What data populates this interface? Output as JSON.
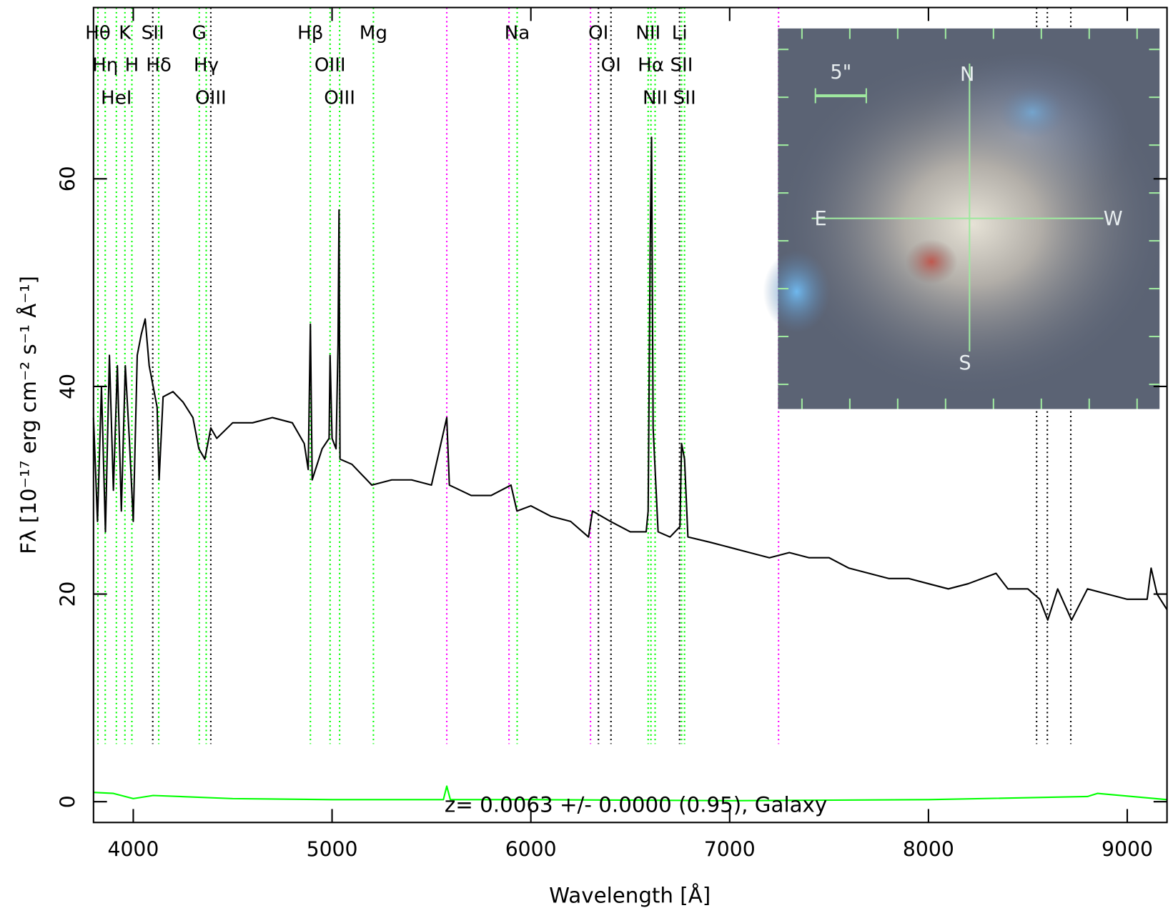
{
  "chart_data": {
    "type": "line",
    "xlabel": "Wavelength [Å]",
    "ylabel": "Fλ [10⁻¹⁷ erg cm⁻² s⁻¹ Å⁻¹]",
    "annotation": "z= 0.0063 +/- 0.0000 (0.95), Galaxy",
    "xlim": [
      3800,
      9200
    ],
    "ylim": [
      -2,
      76.5
    ],
    "xticks": [
      4000,
      5000,
      6000,
      7000,
      8000,
      9000
    ],
    "yticks": [
      0,
      20,
      40,
      60
    ],
    "series": [
      {
        "color": "#000000",
        "x": [
          3800,
          3820,
          3840,
          3860,
          3880,
          3900,
          3920,
          3940,
          3960,
          3980,
          4000,
          4020,
          4040,
          4060,
          4080,
          4100,
          4120,
          4130,
          4150,
          4200,
          4250,
          4300,
          4330,
          4360,
          4390,
          4420,
          4500,
          4600,
          4700,
          4800,
          4860,
          4880,
          4891,
          4900,
          4950,
          4985,
          4990,
          5000,
          5020,
          5030,
          5035,
          5040,
          5100,
          5200,
          5300,
          5400,
          5500,
          5577,
          5590,
          5700,
          5800,
          5900,
          5930,
          6000,
          6100,
          6200,
          6290,
          6310,
          6400,
          6500,
          6580,
          6590,
          6600,
          6607,
          6615,
          6625,
          6640,
          6700,
          6750,
          6758,
          6773,
          6790,
          6900,
          7000,
          7100,
          7200,
          7300,
          7400,
          7500,
          7600,
          7700,
          7800,
          7900,
          8000,
          8100,
          8200,
          8340,
          8400,
          8500,
          8560,
          8600,
          8650,
          8720,
          8800,
          8900,
          9000,
          9100,
          9120,
          9150,
          9200
        ],
        "values": [
          37,
          27,
          40,
          26,
          43,
          30,
          42,
          28,
          42,
          35,
          27,
          43,
          45,
          46.5,
          42,
          40,
          38,
          31,
          39,
          39.5,
          38.5,
          37,
          34,
          33,
          36,
          35,
          36.5,
          36.5,
          37,
          36.5,
          34.5,
          32,
          46,
          31,
          34,
          35,
          43,
          35,
          34,
          44,
          57,
          33,
          32.5,
          30.5,
          31,
          31,
          30.5,
          37,
          30.5,
          29.5,
          29.5,
          30.5,
          28,
          28.5,
          27.5,
          27,
          25.5,
          28,
          27,
          26,
          26,
          28,
          53,
          64,
          36,
          32,
          26,
          25.5,
          26.5,
          34.5,
          33,
          25.5,
          25,
          24.5,
          24,
          23.5,
          24,
          23.5,
          23.5,
          22.5,
          22,
          21.5,
          21.5,
          21,
          20.5,
          21,
          22,
          20.5,
          20.5,
          19.5,
          17.5,
          20.5,
          17.5,
          20.5,
          20,
          19.5,
          19.5,
          22.5,
          20,
          18.5
        ]
      },
      {
        "color": "#00ff00",
        "x": [
          3800,
          3900,
          4000,
          4100,
          4500,
          5000,
          5560,
          5577,
          5595,
          6000,
          7000,
          8000,
          8800,
          8850,
          9200
        ],
        "values": [
          0.9,
          0.8,
          0.3,
          0.6,
          0.3,
          0.2,
          0.2,
          1.5,
          0.2,
          0.2,
          0.1,
          0.2,
          0.5,
          0.8,
          0.2
        ]
      }
    ],
    "features": [
      {
        "wavelength": 3822,
        "color": "#00ff00",
        "label": "Hθ"
      },
      {
        "wavelength": 3859,
        "color": "#00ff00",
        "label": "Hη"
      },
      {
        "wavelength": 3915,
        "color": "#00ff00",
        "label": "HeI"
      },
      {
        "wavelength": 3958,
        "color": "#00ff00",
        "label": "K"
      },
      {
        "wavelength": 3993,
        "color": "#00ff00",
        "label": "H"
      },
      {
        "wavelength": 4098,
        "color": "#000000",
        "label": "SII"
      },
      {
        "wavelength": 4128,
        "color": "#00ff00",
        "label": "Hδ"
      },
      {
        "wavelength": 4332,
        "color": "#00ff00",
        "label": "G"
      },
      {
        "wavelength": 4367,
        "color": "#00ff00",
        "label": "Hγ"
      },
      {
        "wavelength": 4390,
        "color": "#000000",
        "label": "OIII"
      },
      {
        "wavelength": 4891,
        "color": "#00ff00",
        "label": "Hβ"
      },
      {
        "wavelength": 4990,
        "color": "#00ff00",
        "label": "OIII"
      },
      {
        "wavelength": 5038,
        "color": "#00ff00",
        "label": "OIII"
      },
      {
        "wavelength": 5208,
        "color": "#00ff00",
        "label": "Mg"
      },
      {
        "wavelength": 5577,
        "color": "#ff00ff"
      },
      {
        "wavelength": 5890,
        "color": "#ff00ff"
      },
      {
        "wavelength": 5931,
        "color": "#00ff00",
        "label": "Na"
      },
      {
        "wavelength": 6300,
        "color": "#ff00ff"
      },
      {
        "wavelength": 6340,
        "color": "#000000",
        "label": "OI"
      },
      {
        "wavelength": 6403,
        "color": "#000000",
        "label": "OI"
      },
      {
        "wavelength": 6590,
        "color": "#00ff00",
        "label": "NII"
      },
      {
        "wavelength": 6604,
        "color": "#00ff00",
        "label": "Hα"
      },
      {
        "wavelength": 6625,
        "color": "#00ff00",
        "label": "NII"
      },
      {
        "wavelength": 6748,
        "color": "#000000",
        "label": "Li"
      },
      {
        "wavelength": 6758,
        "color": "#00ff00",
        "label": "SII"
      },
      {
        "wavelength": 6773,
        "color": "#00ff00",
        "label": "SII"
      },
      {
        "wavelength": 7246,
        "color": "#ff00ff"
      },
      {
        "wavelength": 8544,
        "color": "#000000"
      },
      {
        "wavelength": 8598,
        "color": "#000000"
      },
      {
        "wavelength": 8716,
        "color": "#000000"
      }
    ],
    "inset_labels": {
      "scale": "5\"",
      "north": "N",
      "south": "S",
      "east": "E",
      "west": "W"
    }
  }
}
